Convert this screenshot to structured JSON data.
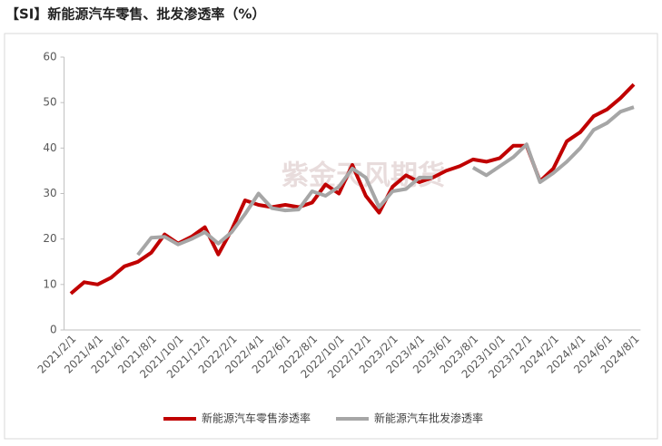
{
  "chart_data": {
    "type": "line",
    "title": "【SI】新能源汽车零售、批发渗透率（%）",
    "watermark": "紫金天风期货",
    "categories": [
      "2021/2/1",
      null,
      "2021/4/1",
      null,
      "2021/6/1",
      null,
      "2021/8/1",
      null,
      "2021/10/1",
      null,
      "2021/12/1",
      null,
      "2022/2/1",
      null,
      "2022/4/1",
      null,
      "2022/6/1",
      null,
      "2022/8/1",
      null,
      "2022/10/1",
      null,
      "2022/12/1",
      null,
      "2023/2/1",
      null,
      "2023/4/1",
      null,
      "2023/6/1",
      null,
      "2023/8/1",
      null,
      "2023/10/1",
      null,
      "2023/12/1",
      null,
      "2024/2/1",
      null,
      "2024/4/1",
      null,
      "2024/6/1",
      null,
      "2024/8/1"
    ],
    "series": [
      {
        "name": "新能源汽车零售渗透率",
        "color": "#c00000",
        "values": [
          8,
          10.5,
          10,
          11.5,
          14,
          15,
          17,
          21,
          19,
          20.5,
          22.6,
          16.6,
          22,
          28.5,
          27.5,
          27,
          27.5,
          27,
          28,
          32,
          30,
          36.3,
          29.5,
          25.8,
          31.5,
          34,
          32.5,
          33.5,
          35,
          36,
          37.5,
          37,
          37.8,
          40.5,
          40.5,
          32.7,
          35.5,
          41.5,
          43.5,
          47,
          48.5,
          51,
          54
        ]
      },
      {
        "name": "新能源汽车批发渗透率",
        "color": "#a6a6a6",
        "values": [
          null,
          null,
          null,
          null,
          null,
          16.5,
          20.3,
          20.5,
          18.8,
          20,
          21.5,
          19,
          21.5,
          25.5,
          30,
          26.8,
          26.3,
          26.5,
          30.5,
          29.5,
          31.5,
          35.5,
          33.5,
          27,
          30.5,
          31,
          33.5,
          33.5,
          null,
          null,
          35.7,
          34,
          36,
          38,
          40.8,
          32.5,
          34.5,
          37,
          40,
          44,
          45.5,
          48,
          49
        ]
      }
    ],
    "ylim": [
      0,
      60
    ],
    "yticks": [
      0,
      10,
      20,
      30,
      40,
      50,
      60
    ],
    "grid": false,
    "legend": "bottom"
  }
}
